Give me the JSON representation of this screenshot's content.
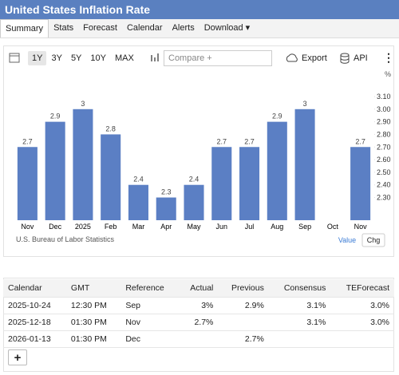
{
  "header": {
    "title": "United States Inflation Rate"
  },
  "tabs": {
    "items": [
      "Summary",
      "Stats",
      "Forecast",
      "Calendar",
      "Alerts",
      "Download"
    ],
    "selected": "Summary"
  },
  "toolbar": {
    "ranges": [
      "1Y",
      "3Y",
      "5Y",
      "10Y",
      "MAX"
    ],
    "selected_range": "1Y",
    "compare": "Compare +",
    "export": "Export",
    "api": "API"
  },
  "chart_data": {
    "type": "bar",
    "ylabel": "%",
    "source": "U.S. Bureau of Labor Statistics",
    "categories": [
      "Nov",
      "Dec",
      "2025",
      "Feb",
      "Mar",
      "Apr",
      "May",
      "Jun",
      "Jul",
      "Aug",
      "Sep",
      "Oct",
      "Nov"
    ],
    "values": [
      2.7,
      2.9,
      3,
      2.8,
      2.4,
      2.3,
      2.4,
      2.7,
      2.7,
      2.9,
      3,
      null,
      2.7
    ],
    "color": "#5b7fc4",
    "ylim": [
      2.12,
      3.22
    ],
    "y_axis_side": "right",
    "yticks": [
      {
        "value": 3.1,
        "label": "3.10"
      },
      {
        "value": 3.0,
        "label": "3.00"
      },
      {
        "value": 2.9,
        "label": "2.90"
      },
      {
        "value": 2.8,
        "label": "2.80"
      },
      {
        "value": 2.7,
        "label": "2.70"
      },
      {
        "value": 2.6,
        "label": "2.60"
      },
      {
        "value": 2.5,
        "label": "2.50"
      },
      {
        "value": 2.4,
        "label": "2.40"
      },
      {
        "value": 2.3,
        "label": "2.30"
      }
    ],
    "grid": false,
    "modes": [
      "Value",
      "Chg"
    ],
    "selected_mode": "Value"
  },
  "table": {
    "columns": [
      "Calendar",
      "GMT",
      "Reference",
      "Actual",
      "Previous",
      "Consensus",
      "TEForecast"
    ],
    "rows": [
      [
        "2025-10-24",
        "12:30 PM",
        "Sep",
        "3%",
        "2.9%",
        "3.1%",
        "3.0%"
      ],
      [
        "2025-12-18",
        "01:30 PM",
        "Nov",
        "2.7%",
        null,
        "3.1%",
        "3.0%"
      ],
      [
        "2026-01-13",
        "01:30 PM",
        "Dec",
        null,
        "2.7%",
        null,
        null
      ]
    ],
    "add_button": "+"
  }
}
